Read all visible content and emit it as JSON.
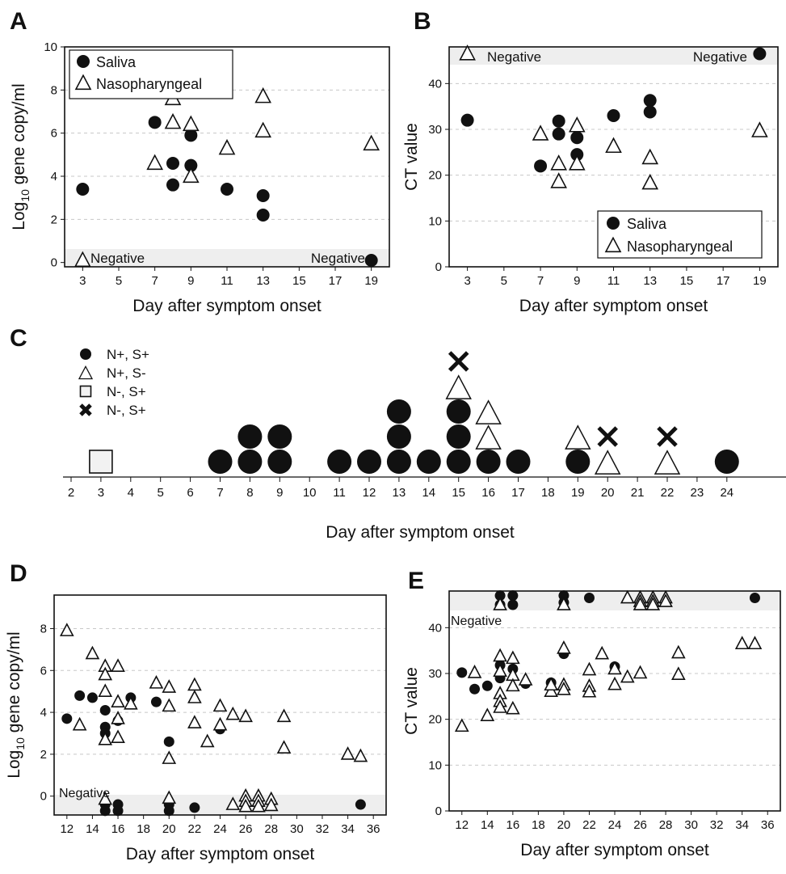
{
  "panels": {
    "A": "A",
    "B": "B",
    "C": "C",
    "D": "D",
    "E": "E"
  },
  "chart_data": [
    {
      "panel": "A",
      "type": "scatter",
      "xlabel": "Day after symptom onset",
      "ylabel": "Log10 gene copy/ml",
      "xticks": [
        3,
        5,
        7,
        9,
        11,
        13,
        15,
        17,
        19
      ],
      "yticks": [
        0,
        2,
        4,
        6,
        8,
        10
      ],
      "xlim": [
        2,
        20
      ],
      "ylim": [
        -0.2,
        10
      ],
      "grid": "horizontal dashed",
      "legend": "top-left",
      "negative_label_left": "Negative",
      "negative_label_right": "Negative",
      "series": [
        {
          "name": "Saliva",
          "marker": "circle",
          "points": [
            [
              3,
              3.4
            ],
            [
              7,
              6.5
            ],
            [
              8,
              4.6
            ],
            [
              8,
              3.6
            ],
            [
              9,
              5.9
            ],
            [
              9,
              4.5
            ],
            [
              11,
              3.4
            ],
            [
              13,
              3.1
            ],
            [
              13,
              2.2
            ],
            [
              19,
              0.1
            ]
          ]
        },
        {
          "name": "Nasopharyngeal",
          "marker": "triangle",
          "points": [
            [
              3,
              0.1
            ],
            [
              7,
              4.6
            ],
            [
              8,
              7.6
            ],
            [
              8,
              6.5
            ],
            [
              9,
              6.4
            ],
            [
              9,
              4.0
            ],
            [
              11,
              5.3
            ],
            [
              13,
              7.7
            ],
            [
              13,
              6.1
            ],
            [
              19,
              5.5
            ]
          ]
        }
      ]
    },
    {
      "panel": "B",
      "type": "scatter",
      "xlabel": "Day after symptom onset",
      "ylabel": "CT value",
      "xticks": [
        3,
        5,
        7,
        9,
        11,
        13,
        15,
        17,
        19
      ],
      "yticks": [
        0,
        10,
        20,
        30,
        40
      ],
      "xlim": [
        2,
        20
      ],
      "ylim": [
        0,
        48
      ],
      "grid": "horizontal dashed",
      "legend": "bottom-right",
      "negative_label_left": "Negative",
      "negative_label_right": "Negative",
      "series": [
        {
          "name": "Saliva",
          "marker": "circle",
          "points": [
            [
              3,
              32
            ],
            [
              7,
              22
            ],
            [
              8,
              31.8
            ],
            [
              8,
              29
            ],
            [
              9,
              28.2
            ],
            [
              9,
              24.5
            ],
            [
              11,
              33
            ],
            [
              13,
              36.3
            ],
            [
              13,
              33.8
            ],
            [
              19,
              46.5
            ]
          ]
        },
        {
          "name": "Nasopharyngeal",
          "marker": "triangle",
          "points": [
            [
              3,
              46.5
            ],
            [
              7,
              29
            ],
            [
              8,
              22.5
            ],
            [
              8,
              18.6
            ],
            [
              9,
              30.8
            ],
            [
              9,
              22.5
            ],
            [
              11,
              26.3
            ],
            [
              13,
              23.8
            ],
            [
              13,
              18.3
            ],
            [
              19,
              29.7
            ]
          ]
        }
      ]
    },
    {
      "panel": "C",
      "type": "scatter",
      "xlabel": "Day after symptom onset",
      "xticks": [
        2,
        3,
        4,
        5,
        6,
        7,
        8,
        9,
        10,
        11,
        12,
        13,
        14,
        15,
        16,
        17,
        18,
        19,
        20,
        21,
        22,
        23,
        24
      ],
      "xlim": [
        2,
        24.5
      ],
      "legend": "top-left",
      "legend_items": [
        {
          "label": "N+, S+",
          "marker": "circle"
        },
        {
          "label": "N+, S-",
          "marker": "triangle"
        },
        {
          "label": "N-, S+",
          "marker": "square"
        },
        {
          "label": "N-, S+",
          "marker": "cross"
        }
      ],
      "stacks": [
        {
          "x": 3,
          "markers": [
            "square"
          ]
        },
        {
          "x": 7,
          "markers": [
            "circle"
          ]
        },
        {
          "x": 8,
          "markers": [
            "circle",
            "circle"
          ]
        },
        {
          "x": 9,
          "markers": [
            "circle",
            "circle"
          ]
        },
        {
          "x": 11,
          "markers": [
            "circle"
          ]
        },
        {
          "x": 12,
          "markers": [
            "circle"
          ]
        },
        {
          "x": 13,
          "markers": [
            "circle",
            "circle",
            "circle"
          ]
        },
        {
          "x": 14,
          "markers": [
            "circle"
          ]
        },
        {
          "x": 15,
          "markers": [
            "circle",
            "circle",
            "circle",
            "triangle",
            "cross"
          ]
        },
        {
          "x": 16,
          "markers": [
            "circle",
            "triangle",
            "triangle"
          ]
        },
        {
          "x": 17,
          "markers": [
            "circle"
          ]
        },
        {
          "x": 19,
          "markers": [
            "circle",
            "triangle"
          ]
        },
        {
          "x": 20,
          "markers": [
            "triangle",
            "cross"
          ]
        },
        {
          "x": 22,
          "markers": [
            "triangle",
            "cross"
          ]
        },
        {
          "x": 24,
          "markers": [
            "circle"
          ]
        }
      ]
    },
    {
      "panel": "D",
      "type": "scatter",
      "xlabel": "Day after symptom onset",
      "ylabel": "Log10 gene copy/ml",
      "xticks": [
        12,
        14,
        16,
        18,
        20,
        22,
        24,
        26,
        28,
        30,
        32,
        34,
        36
      ],
      "yticks": [
        0,
        2,
        4,
        6,
        8
      ],
      "xlim": [
        11,
        37
      ],
      "ylim": [
        -0.9,
        9.6
      ],
      "grid": "horizontal dashed",
      "negative_label": "Negative",
      "series": [
        {
          "name": "Saliva",
          "marker": "circle",
          "points": [
            [
              12,
              3.7
            ],
            [
              13,
              4.8
            ],
            [
              14,
              4.7
            ],
            [
              15,
              4.1
            ],
            [
              15,
              3.3
            ],
            [
              15,
              3.0
            ],
            [
              16,
              3.6
            ],
            [
              17,
              4.7
            ],
            [
              19,
              4.5
            ],
            [
              20,
              2.6
            ],
            [
              24,
              3.2
            ],
            [
              15,
              -0.4
            ],
            [
              15,
              -0.7
            ],
            [
              16,
              -0.4
            ],
            [
              16,
              -0.7
            ],
            [
              20,
              -0.4
            ],
            [
              20,
              -0.7
            ],
            [
              22,
              -0.55
            ],
            [
              35,
              -0.4
            ]
          ]
        },
        {
          "name": "Nasopharyngeal",
          "marker": "triangle",
          "points": [
            [
              12,
              7.9
            ],
            [
              13,
              3.4
            ],
            [
              14,
              6.8
            ],
            [
              15,
              6.2
            ],
            [
              15,
              5.8
            ],
            [
              15,
              5.0
            ],
            [
              15,
              2.7
            ],
            [
              16,
              6.2
            ],
            [
              16,
              4.5
            ],
            [
              16,
              3.7
            ],
            [
              16,
              2.8
            ],
            [
              17,
              4.4
            ],
            [
              19,
              5.4
            ],
            [
              20,
              5.2
            ],
            [
              20,
              4.3
            ],
            [
              20,
              1.8
            ],
            [
              22,
              5.3
            ],
            [
              22,
              4.7
            ],
            [
              22,
              3.5
            ],
            [
              23,
              2.6
            ],
            [
              24,
              4.3
            ],
            [
              24,
              3.4
            ],
            [
              25,
              3.9
            ],
            [
              26,
              3.8
            ],
            [
              29,
              3.8
            ],
            [
              29,
              2.3
            ],
            [
              34,
              2.0
            ],
            [
              35,
              1.9
            ],
            [
              15,
              -0.15
            ],
            [
              20,
              -0.1
            ],
            [
              25,
              -0.4
            ],
            [
              26,
              0.0
            ],
            [
              26,
              -0.25
            ],
            [
              26,
              -0.5
            ],
            [
              27,
              0.0
            ],
            [
              27,
              -0.25
            ],
            [
              27,
              -0.5
            ],
            [
              28,
              -0.15
            ],
            [
              28,
              -0.45
            ]
          ]
        }
      ]
    },
    {
      "panel": "E",
      "type": "scatter",
      "xlabel": "Day after symptom onset",
      "ylabel": "CT value",
      "xticks": [
        12,
        14,
        16,
        18,
        20,
        22,
        24,
        26,
        28,
        30,
        32,
        34,
        36
      ],
      "yticks": [
        0,
        10,
        20,
        30,
        40
      ],
      "xlim": [
        11,
        37
      ],
      "ylim": [
        0,
        48
      ],
      "grid": "horizontal dashed",
      "negative_label": "Negative",
      "series": [
        {
          "name": "Saliva",
          "marker": "circle",
          "points": [
            [
              12,
              30.2
            ],
            [
              13,
              26.6
            ],
            [
              14,
              27.3
            ],
            [
              15,
              31.8
            ],
            [
              15,
              29
            ],
            [
              16,
              31
            ],
            [
              17,
              27.8
            ],
            [
              19,
              28
            ],
            [
              20,
              34.3
            ],
            [
              24,
              31.5
            ],
            [
              15,
              47
            ],
            [
              15,
              45
            ],
            [
              16,
              47
            ],
            [
              16,
              45
            ],
            [
              20,
              47
            ],
            [
              20,
              45.5
            ],
            [
              22,
              46.5
            ],
            [
              35,
              46.5
            ]
          ]
        },
        {
          "name": "Nasopharyngeal",
          "marker": "triangle",
          "points": [
            [
              12,
              18.5
            ],
            [
              13,
              30.2
            ],
            [
              14,
              20.8
            ],
            [
              15,
              33.8
            ],
            [
              15,
              30.5
            ],
            [
              15,
              25.6
            ],
            [
              15,
              23.9
            ],
            [
              15,
              22.6
            ],
            [
              16,
              33.3
            ],
            [
              16,
              29.6
            ],
            [
              16,
              27.3
            ],
            [
              16,
              22.3
            ],
            [
              17,
              28.6
            ],
            [
              19,
              26.1
            ],
            [
              19,
              27.5
            ],
            [
              20,
              35.5
            ],
            [
              20,
              27.5
            ],
            [
              20,
              26.5
            ],
            [
              22,
              30.8
            ],
            [
              22,
              27.2
            ],
            [
              22,
              26
            ],
            [
              23,
              34.3
            ],
            [
              24,
              27.6
            ],
            [
              24,
              31
            ],
            [
              25,
              29.2
            ],
            [
              26,
              30.1
            ],
            [
              29,
              34.5
            ],
            [
              29,
              29.8
            ],
            [
              34,
              36.5
            ],
            [
              35,
              36.5
            ],
            [
              15,
              45
            ],
            [
              20,
              45
            ],
            [
              25,
              46.5
            ],
            [
              26,
              46.5
            ],
            [
              26,
              45.7
            ],
            [
              26,
              45
            ],
            [
              27,
              46.5
            ],
            [
              27,
              45.7
            ],
            [
              27,
              45
            ],
            [
              28,
              46.5
            ],
            [
              28,
              45.7
            ]
          ]
        }
      ]
    }
  ]
}
